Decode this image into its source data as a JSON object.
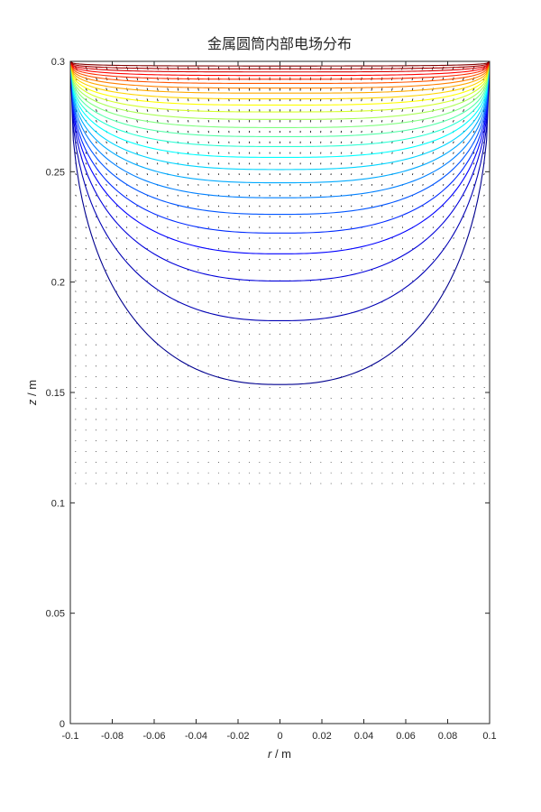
{
  "chart_data": {
    "type": "contour",
    "title": "金属圆筒内部电场分布",
    "xlabel": {
      "var": "r",
      "unit": " / m"
    },
    "ylabel": {
      "var": "z",
      "unit": " / m"
    },
    "xlim": [
      -0.1,
      0.1
    ],
    "ylim": [
      0,
      0.3
    ],
    "xticks": [
      -0.1,
      -0.08,
      -0.06,
      -0.04,
      -0.02,
      0,
      0.02,
      0.04,
      0.06,
      0.08,
      0.1
    ],
    "xtick_labels": [
      "-0.1",
      "-0.08",
      "-0.06",
      "-0.04",
      "-0.02",
      "0",
      "0.02",
      "0.04",
      "0.06",
      "0.08",
      "0.1"
    ],
    "yticks": [
      0,
      0.05,
      0.1,
      0.15,
      0.2,
      0.25,
      0.3
    ],
    "ytick_labels": [
      "0",
      "0.05",
      "0.1",
      "0.15",
      "0.2",
      "0.25",
      "0.3"
    ],
    "contour_bottoms_z": [
      0.1536,
      0.1825,
      0.2005,
      0.2128,
      0.2222,
      0.2307,
      0.2382,
      0.245,
      0.251,
      0.2565,
      0.2614,
      0.2659,
      0.27,
      0.2737,
      0.2771,
      0.2802,
      0.283,
      0.2856,
      0.2879,
      0.29,
      0.2919,
      0.2936,
      0.2952,
      0.2966,
      0.2979
    ],
    "colormap": [
      "#00008f",
      "#0000ff",
      "#0080ff",
      "#00ffff",
      "#80ff80",
      "#ffff00",
      "#ff8000",
      "#ff0000",
      "#800000"
    ],
    "vector_field": "quiver",
    "grid": false
  }
}
